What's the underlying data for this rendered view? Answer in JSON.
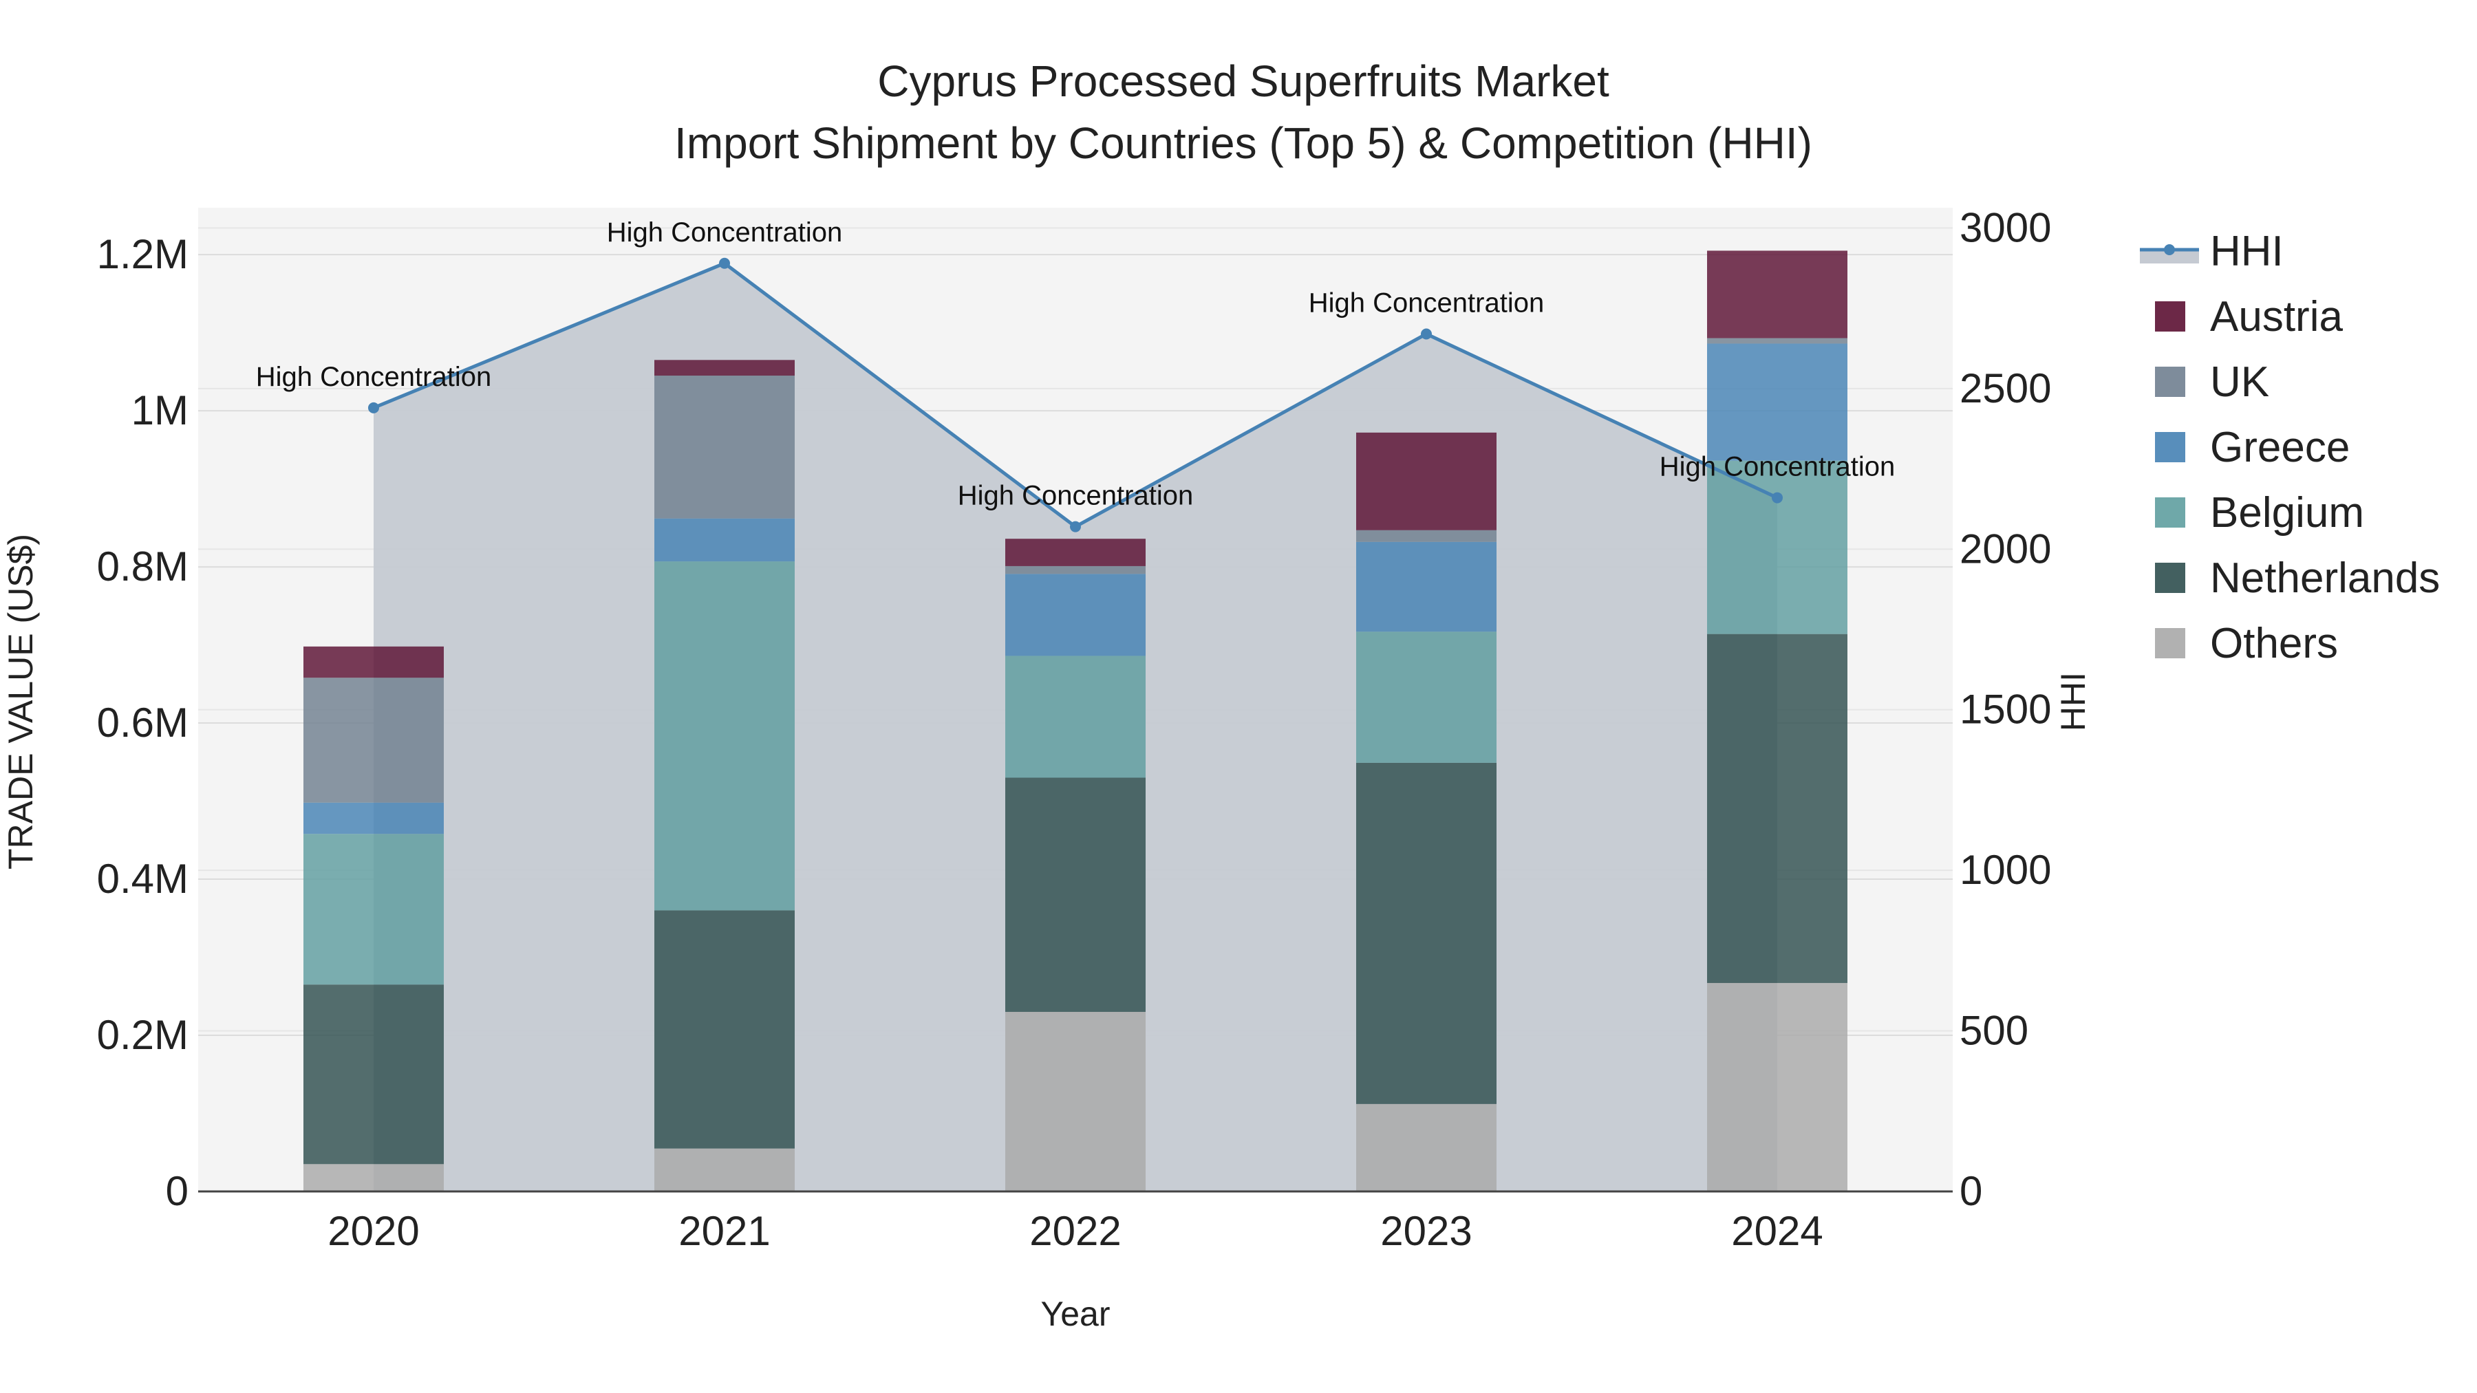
{
  "chart_data": {
    "type": "bar",
    "title": "Cyprus Processed Superfruits Market",
    "subtitle": "Import Shipment by Countries (Top 5) & Competition (HHI)",
    "xlabel": "Year",
    "ylabel": "TRADE VALUE (US$)",
    "y2label": "HHI",
    "categories": [
      "2020",
      "2021",
      "2022",
      "2023",
      "2024"
    ],
    "ylim": [
      0,
      1260000
    ],
    "y2lim": [
      0,
      3063
    ],
    "yticks": [
      0,
      200000,
      400000,
      600000,
      800000,
      1000000,
      1200000
    ],
    "ytick_labels": [
      "0",
      "0.2M",
      "0.4M",
      "0.6M",
      "0.8M",
      "1M",
      "1.2M"
    ],
    "y2ticks": [
      0,
      500,
      1000,
      1500,
      2000,
      2500,
      3000
    ],
    "y2tick_labels": [
      "0",
      "500",
      "1000",
      "1500",
      "2000",
      "2500",
      "3000"
    ],
    "series": [
      {
        "name": "Others",
        "color": "#a9a9a9",
        "values": [
          35000,
          55000,
          230000,
          112000,
          267000
        ]
      },
      {
        "name": "Netherlands",
        "color": "#2f4f4f",
        "values": [
          230000,
          305000,
          300000,
          437000,
          447000
        ]
      },
      {
        "name": "Belgium",
        "color": "#5f9ea0",
        "values": [
          193000,
          447000,
          156000,
          168000,
          222000
        ]
      },
      {
        "name": "Greece",
        "color": "#4682b4",
        "values": [
          40000,
          55000,
          105000,
          115000,
          150000
        ]
      },
      {
        "name": "UK",
        "color": "#708090",
        "values": [
          160000,
          183000,
          10000,
          15000,
          7000
        ]
      },
      {
        "name": "Austria",
        "color": "#5c1133",
        "values": [
          40000,
          20000,
          35000,
          125000,
          112000
        ]
      }
    ],
    "hhi": {
      "name": "HHI",
      "color": "#4682b4",
      "values": [
        2440,
        2890,
        2070,
        2670,
        2160
      ],
      "annotations": [
        "High Concentration",
        "High Concentration",
        "High Concentration",
        "High Concentration",
        "High Concentration"
      ]
    },
    "legend": [
      "HHI",
      "Austria",
      "UK",
      "Greece",
      "Belgium",
      "Netherlands",
      "Others"
    ],
    "legend_position": "right"
  }
}
